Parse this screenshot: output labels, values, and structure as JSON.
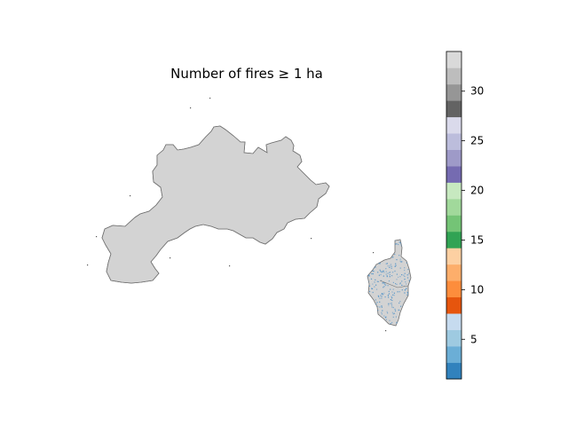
{
  "figure": {
    "title": "Number of fires ≥ 1 ha"
  },
  "map": {
    "background_fill": "#d3d3d3",
    "border_color": "#6f6f6f",
    "point_color": "#4a8fc7",
    "regions": [
      "mainland",
      "corsica"
    ]
  },
  "colorbar": {
    "min": 1,
    "max": 34,
    "ticks": [
      5,
      10,
      15,
      20,
      25,
      30
    ],
    "tick_labels": [
      "5",
      "10",
      "15",
      "20",
      "25",
      "30"
    ],
    "colors": [
      "#3182bd",
      "#6baed6",
      "#9ecae1",
      "#c6dbef",
      "#e6550d",
      "#fd8d3c",
      "#fdae6b",
      "#fdd0a2",
      "#31a354",
      "#74c476",
      "#a1d99b",
      "#c7e9c0",
      "#756bb1",
      "#9e9ac8",
      "#bcbddc",
      "#dadaeb",
      "#636363",
      "#969696",
      "#bdbdbd",
      "#d9d9d9"
    ]
  }
}
